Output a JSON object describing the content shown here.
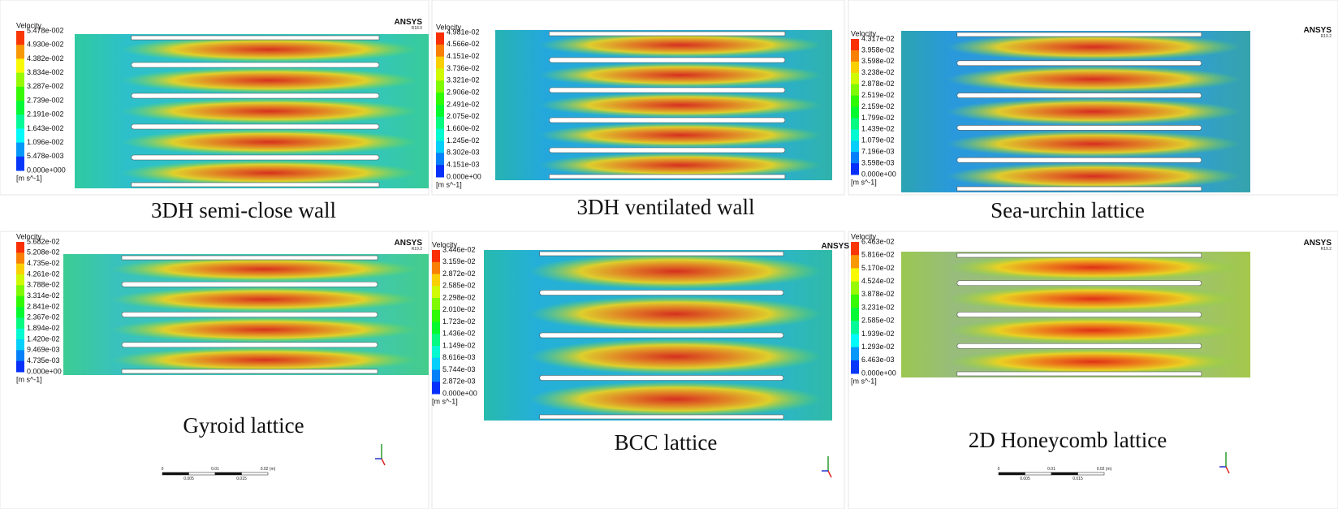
{
  "panels": [
    {
      "caption": "3DH semi-close wall",
      "brand": "ANSYS",
      "version": "R18.0",
      "legend": {
        "title": "Velocity",
        "unit": "[m s^-1]",
        "labels": [
          "5.478e-002",
          "4.930e-002",
          "4.382e-002",
          "3.834e-002",
          "3.287e-002",
          "2.739e-002",
          "2.191e-002",
          "1.643e-002",
          "1.096e-002",
          "5.478e-003",
          "0.000e+000"
        ]
      }
    },
    {
      "caption": "3DH ventilated wall",
      "legend": {
        "title": "Velocity",
        "unit": "[m s^-1]",
        "labels": [
          "4.981e-02",
          "4.566e-02",
          "4.151e-02",
          "3.736e-02",
          "3.321e-02",
          "2.906e-02",
          "2.491e-02",
          "2.075e-02",
          "1.660e-02",
          "1.245e-02",
          "8.302e-03",
          "4.151e-03",
          "0.000e+00"
        ]
      }
    },
    {
      "caption": "Sea-urchin lattice",
      "brand": "ANSYS",
      "version": "R19.2",
      "legend": {
        "title": "Velocity",
        "unit": "[m s^-1]",
        "labels": [
          "4.317e-02",
          "3.958e-02",
          "3.598e-02",
          "3.238e-02",
          "2.878e-02",
          "2.519e-02",
          "2.159e-02",
          "1.799e-02",
          "1.439e-02",
          "1.079e-02",
          "7.196e-03",
          "3.598e-03",
          "0.000e+00"
        ]
      }
    },
    {
      "caption": "Gyroid lattice",
      "brand": "ANSYS",
      "version": "R19.2",
      "legend": {
        "title": "Velocity",
        "unit": "[m s^-1]",
        "labels": [
          "5.682e-02",
          "5.208e-02",
          "4.735e-02",
          "4.261e-02",
          "3.788e-02",
          "3.314e-02",
          "2.841e-02",
          "2.367e-02",
          "1.894e-02",
          "1.420e-02",
          "9.469e-03",
          "4.735e-03",
          "0.000e+00"
        ]
      },
      "scale_bar": [
        "0",
        "0.005",
        "0.01",
        "0.015",
        "0.02 (m)"
      ]
    },
    {
      "caption": "BCC lattice",
      "brand": "ANSYS",
      "legend": {
        "title": "Velocity",
        "unit": "[m s^-1]",
        "labels": [
          "3.446e-02",
          "3.159e-02",
          "2.872e-02",
          "2.585e-02",
          "2.298e-02",
          "2.010e-02",
          "1.723e-02",
          "1.436e-02",
          "1.149e-02",
          "8.616e-03",
          "5.744e-03",
          "2.872e-03",
          "0.000e+00"
        ]
      }
    },
    {
      "caption": "2D Honeycomb lattice",
      "brand": "ANSYS",
      "version": "R19.2",
      "legend": {
        "title": "Velocity",
        "unit": "[m s^-1]",
        "labels": [
          "6.463e-02",
          "5.816e-02",
          "5.170e-02",
          "4.524e-02",
          "3.878e-02",
          "3.231e-02",
          "2.585e-02",
          "1.939e-02",
          "1.293e-02",
          "6.463e-03",
          "0.000e+00"
        ]
      },
      "scale_bar": [
        "0",
        "0.005",
        "0.01",
        "0.015",
        "0.02 (m)"
      ]
    }
  ]
}
